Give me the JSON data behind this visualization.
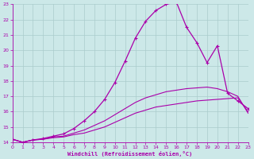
{
  "xlabel": "Windchill (Refroidissement éolien,°C)",
  "xlim": [
    0,
    23
  ],
  "ylim": [
    14,
    23
  ],
  "yticks": [
    14,
    15,
    16,
    17,
    18,
    19,
    20,
    21,
    22,
    23
  ],
  "xticks": [
    0,
    1,
    2,
    3,
    4,
    5,
    6,
    7,
    8,
    9,
    10,
    11,
    12,
    13,
    14,
    15,
    16,
    17,
    18,
    19,
    20,
    21,
    22,
    23
  ],
  "background_color": "#cce8e8",
  "grid_color": "#aacccc",
  "line_color": "#aa00aa",
  "line1_x": [
    0,
    1,
    2,
    3,
    4,
    5,
    6,
    7,
    8,
    9,
    10,
    11,
    12,
    13,
    14,
    15,
    16,
    17,
    18,
    19,
    20,
    21,
    22,
    23
  ],
  "line1_y": [
    14.2,
    14.0,
    14.15,
    14.2,
    14.3,
    14.35,
    14.5,
    14.6,
    14.8,
    15.0,
    15.3,
    15.6,
    15.9,
    16.1,
    16.3,
    16.4,
    16.5,
    16.6,
    16.7,
    16.75,
    16.8,
    16.85,
    16.9,
    16.0
  ],
  "line2_x": [
    0,
    1,
    2,
    3,
    4,
    5,
    6,
    7,
    8,
    9,
    10,
    11,
    12,
    13,
    14,
    15,
    16,
    17,
    18,
    19,
    20,
    21,
    22,
    23
  ],
  "line2_y": [
    14.2,
    14.0,
    14.15,
    14.2,
    14.35,
    14.4,
    14.6,
    14.8,
    15.1,
    15.4,
    15.8,
    16.2,
    16.6,
    16.9,
    17.1,
    17.3,
    17.4,
    17.5,
    17.55,
    17.6,
    17.5,
    17.3,
    17.0,
    15.9
  ],
  "line3_x": [
    0,
    1,
    2,
    3,
    4,
    5,
    6,
    7,
    8,
    9,
    10,
    11,
    12,
    13,
    14,
    15,
    16,
    17,
    18,
    19,
    20,
    21,
    22,
    23
  ],
  "line3_y": [
    14.2,
    14.0,
    14.15,
    14.25,
    14.4,
    14.55,
    14.9,
    15.4,
    16.0,
    16.8,
    17.9,
    19.3,
    20.8,
    21.9,
    22.6,
    23.0,
    23.15,
    21.5,
    20.5,
    19.2,
    20.3,
    17.2,
    16.7,
    16.2
  ],
  "has_markers": [
    false,
    false,
    true
  ]
}
